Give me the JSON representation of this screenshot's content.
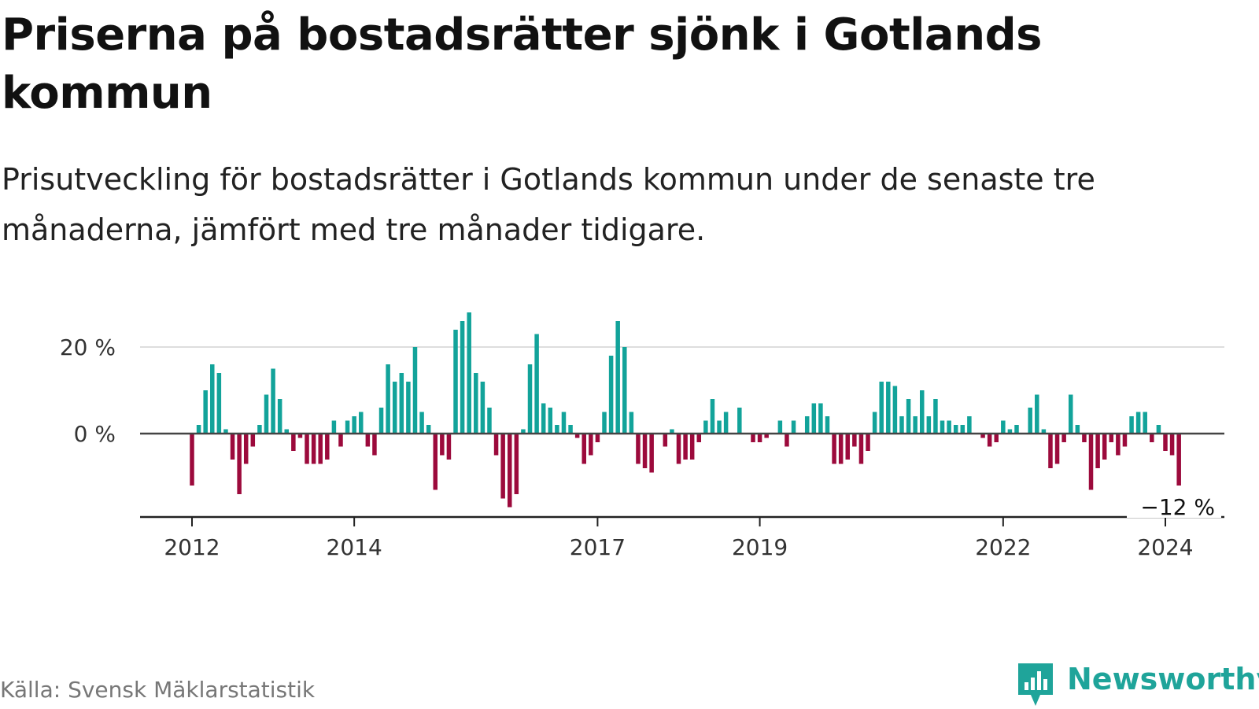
{
  "title": "Priserna på bostadsrätter sjönk i Gotlands kommun",
  "subtitle": "Prisutveckling för bostadsrätter i Gotlands kommun under de senaste tre månaderna, jämfört med tre månader tidigare.",
  "source": "Källa: Svensk Mäklarstatistik",
  "brand": {
    "name": "Newsworthy",
    "icon": "newsworthy-logo-icon",
    "color": "#1fa49a"
  },
  "colors": {
    "positive": "#12a39a",
    "negative": "#9c0a3c",
    "zero_line": "#444444",
    "grid": "#dddddd"
  },
  "chart_data": {
    "type": "bar",
    "xlabel": "",
    "ylabel": "",
    "ylim": [
      -20,
      30
    ],
    "y_ticks": [
      {
        "value": 0,
        "label": "0 %"
      },
      {
        "value": 20,
        "label": "20 %"
      }
    ],
    "x_ticks": [
      {
        "date": "2012-01",
        "label": "2012"
      },
      {
        "date": "2014-01",
        "label": "2014"
      },
      {
        "date": "2017-01",
        "label": "2017"
      },
      {
        "date": "2019-01",
        "label": "2019"
      },
      {
        "date": "2022-01",
        "label": "2022"
      },
      {
        "date": "2024-01",
        "label": "2024"
      }
    ],
    "last_value_label": "−12 %",
    "start": "2012-01",
    "unit": "%",
    "values": [
      -12,
      2,
      10,
      16,
      14,
      1,
      -6,
      -14,
      -7,
      -3,
      2,
      9,
      15,
      8,
      1,
      -4,
      -1,
      -7,
      -7,
      -7,
      -6,
      3,
      -3,
      3,
      4,
      5,
      -3,
      -5,
      6,
      16,
      12,
      14,
      12,
      20,
      5,
      2,
      -13,
      -5,
      -6,
      24,
      26,
      28,
      14,
      12,
      6,
      -5,
      -15,
      -17,
      -14,
      1,
      16,
      23,
      7,
      6,
      2,
      5,
      2,
      -1,
      -7,
      -5,
      -2,
      5,
      18,
      26,
      20,
      5,
      -7,
      -8,
      -9,
      0,
      -3,
      1,
      -7,
      -6,
      -6,
      -2,
      3,
      8,
      3,
      5,
      0,
      6,
      0,
      -2,
      -2,
      -1,
      0,
      3,
      -3,
      3,
      0,
      4,
      7,
      7,
      4,
      -7,
      -7,
      -6,
      -3,
      -7,
      -4,
      5,
      12,
      12,
      11,
      4,
      8,
      4,
      10,
      4,
      8,
      3,
      3,
      2,
      2,
      4,
      0,
      -1,
      -3,
      -2,
      3,
      1,
      2,
      0,
      6,
      9,
      1,
      -8,
      -7,
      -2,
      9,
      2,
      -2,
      -13,
      -8,
      -6,
      -2,
      -5,
      -3,
      4,
      5,
      5,
      -2,
      2,
      -4,
      -5,
      -12
    ]
  }
}
